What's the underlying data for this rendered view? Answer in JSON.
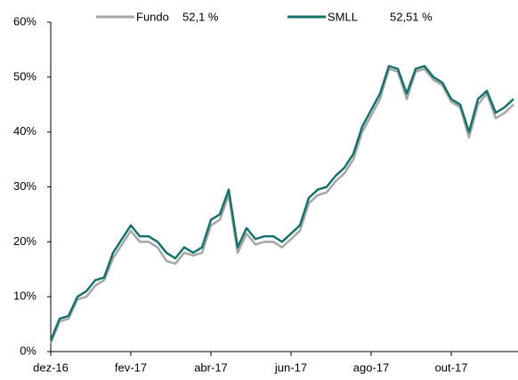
{
  "chart_data": {
    "type": "line",
    "categories": [
      "dez-16",
      null,
      null,
      null,
      null,
      null,
      null,
      null,
      null,
      "fev-17",
      null,
      null,
      null,
      null,
      null,
      null,
      null,
      null,
      "abr-17",
      null,
      null,
      null,
      null,
      null,
      null,
      null,
      null,
      "jun-17",
      null,
      null,
      null,
      null,
      null,
      null,
      null,
      null,
      "ago-17",
      null,
      null,
      null,
      null,
      null,
      null,
      null,
      null,
      "out-17",
      null,
      null,
      null,
      null,
      null,
      null,
      null
    ],
    "series": [
      {
        "name": "Fundo",
        "legend_value": "52,1 %",
        "color": "#a6a6a6",
        "values": [
          1.5,
          5.5,
          6,
          9.5,
          10,
          12,
          13,
          17,
          19.5,
          22,
          20,
          20,
          19,
          16.5,
          16,
          18,
          17.5,
          18,
          23,
          24,
          28.5,
          18,
          21.5,
          19.5,
          20,
          20,
          19,
          20.5,
          22,
          27,
          28.5,
          29,
          31,
          32.5,
          35,
          40,
          43,
          46,
          51.5,
          51,
          46,
          51,
          51.5,
          49.5,
          48.5,
          45.5,
          44.5,
          39,
          45,
          47,
          42.5,
          43.5,
          45
        ]
      },
      {
        "name": "SMLL",
        "legend_value": "52,51 %",
        "color": "#17716b",
        "values": [
          2,
          6,
          6.5,
          10,
          11,
          13,
          13.5,
          18,
          20.5,
          23,
          21,
          21,
          20,
          18,
          17,
          19,
          18,
          19,
          24,
          25,
          29.5,
          19,
          22.5,
          20.5,
          21,
          21,
          20,
          21.5,
          23,
          28,
          29.5,
          30,
          32,
          33.5,
          36,
          41,
          44,
          47,
          52,
          51.5,
          47,
          51.5,
          52,
          50,
          49,
          46,
          45,
          40,
          46,
          47.5,
          43.5,
          44.5,
          46
        ]
      }
    ],
    "ylim": [
      0,
      60
    ],
    "yticks": [
      {
        "value": 0,
        "label": "0%"
      },
      {
        "value": 10,
        "label": "10%"
      },
      {
        "value": 20,
        "label": "20%"
      },
      {
        "value": 30,
        "label": "30%"
      },
      {
        "value": 40,
        "label": "40%"
      },
      {
        "value": 50,
        "label": "50%"
      },
      {
        "value": 60,
        "label": "60%"
      }
    ]
  }
}
